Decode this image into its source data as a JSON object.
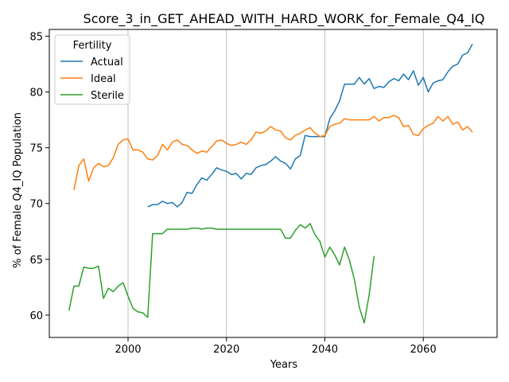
{
  "chart_data": {
    "type": "line",
    "title": "Score_3_in_GET_AHEAD_WITH_HARD_WORK_for_Female_Q4_IQ",
    "xlabel": "Years",
    "ylabel": "% of Female Q4_IQ Population",
    "xlim": [
      1984,
      2075
    ],
    "ylim": [
      58,
      85.6
    ],
    "xticks": [
      2000,
      2020,
      2040,
      2060
    ],
    "yticks": [
      60,
      65,
      70,
      75,
      80,
      85
    ],
    "grid": "x-only",
    "legend": {
      "title": "Fertility",
      "placement": "top-left"
    },
    "series": [
      {
        "name": "Actual",
        "color": "#1f77b4",
        "x": [
          2004,
          2005,
          2006,
          2007,
          2008,
          2009,
          2010,
          2011,
          2012,
          2013,
          2014,
          2015,
          2016,
          2017,
          2018,
          2019,
          2020,
          2021,
          2022,
          2023,
          2024,
          2025,
          2026,
          2027,
          2028,
          2029,
          2030,
          2031,
          2032,
          2033,
          2034,
          2035,
          2036,
          2037,
          2038,
          2039,
          2040,
          2041,
          2042,
          2043,
          2044,
          2045,
          2046,
          2047,
          2048,
          2049,
          2050,
          2051,
          2052,
          2053,
          2054,
          2055,
          2056,
          2057,
          2058,
          2059,
          2060,
          2061,
          2062,
          2063,
          2064,
          2065,
          2066,
          2067,
          2068,
          2069,
          2070
        ],
        "y": [
          69.7,
          69.9,
          69.9,
          70.2,
          70.0,
          70.1,
          69.7,
          70.1,
          71.0,
          70.9,
          71.7,
          72.3,
          72.1,
          72.6,
          73.2,
          73.0,
          72.9,
          72.6,
          72.7,
          72.2,
          72.7,
          72.6,
          73.2,
          73.4,
          73.5,
          73.8,
          74.2,
          73.8,
          73.6,
          73.1,
          74.0,
          74.3,
          76.1,
          76.0,
          76.0,
          76.0,
          76.0,
          77.6,
          78.3,
          79.2,
          80.7,
          80.7,
          80.7,
          81.3,
          80.7,
          81.2,
          80.3,
          80.5,
          80.4,
          80.9,
          81.2,
          81.0,
          81.6,
          81.1,
          81.9,
          80.6,
          81.3,
          80.0,
          80.8,
          81.0,
          81.1,
          81.8,
          82.3,
          82.5,
          83.3,
          83.5,
          84.3
        ]
      },
      {
        "name": "Ideal",
        "color": "#ff7f0e",
        "x": [
          1989,
          1990,
          1991,
          1992,
          1993,
          1994,
          1995,
          1996,
          1997,
          1998,
          1999,
          2000,
          2001,
          2002,
          2003,
          2004,
          2005,
          2006,
          2007,
          2008,
          2009,
          2010,
          2011,
          2012,
          2013,
          2014,
          2015,
          2016,
          2017,
          2018,
          2019,
          2020,
          2021,
          2022,
          2023,
          2024,
          2025,
          2026,
          2027,
          2028,
          2029,
          2030,
          2031,
          2032,
          2033,
          2034,
          2035,
          2036,
          2037,
          2038,
          2039,
          2040,
          2041,
          2042,
          2043,
          2044,
          2045,
          2046,
          2047,
          2048,
          2049,
          2050,
          2051,
          2052,
          2053,
          2054,
          2055,
          2056,
          2057,
          2058,
          2059,
          2060,
          2061,
          2062,
          2063,
          2064,
          2065,
          2066,
          2067,
          2068,
          2069,
          2070
        ],
        "y": [
          71.2,
          73.4,
          74.0,
          72.0,
          73.2,
          73.6,
          73.3,
          73.4,
          74.1,
          75.3,
          75.7,
          75.8,
          74.8,
          74.8,
          74.6,
          74.0,
          73.9,
          74.3,
          75.3,
          74.8,
          75.5,
          75.7,
          75.3,
          75.2,
          74.8,
          74.5,
          74.7,
          74.6,
          75.1,
          75.6,
          75.7,
          75.4,
          75.2,
          75.3,
          75.5,
          75.3,
          75.7,
          76.4,
          76.3,
          76.5,
          76.9,
          76.6,
          76.5,
          75.9,
          75.7,
          76.1,
          76.3,
          76.6,
          76.8,
          76.3,
          76.0,
          76.1,
          76.9,
          77.1,
          77.2,
          77.6,
          77.5,
          77.5,
          77.5,
          77.5,
          77.5,
          77.8,
          77.4,
          77.7,
          77.7,
          77.9,
          77.7,
          76.9,
          77.0,
          76.2,
          76.1,
          76.7,
          77.0,
          77.2,
          77.8,
          77.4,
          77.8,
          77.1,
          77.3,
          76.6,
          76.9,
          76.4
        ]
      },
      {
        "name": "Sterile",
        "color": "#2ca02c",
        "x": [
          1988,
          1989,
          1990,
          1991,
          1992,
          1993,
          1994,
          1995,
          1996,
          1997,
          1998,
          1999,
          2000,
          2001,
          2002,
          2003,
          2004,
          2005,
          2006,
          2007,
          2008,
          2009,
          2010,
          2011,
          2012,
          2013,
          2014,
          2015,
          2016,
          2017,
          2018,
          2019,
          2020,
          2021,
          2022,
          2023,
          2024,
          2025,
          2026,
          2027,
          2028,
          2029,
          2030,
          2031,
          2032,
          2033,
          2034,
          2035,
          2036,
          2037,
          2038,
          2039,
          2040,
          2041,
          2042,
          2043,
          2044,
          2045,
          2046,
          2047,
          2048,
          2049,
          2050
        ],
        "y": [
          60.4,
          62.6,
          62.6,
          64.3,
          64.2,
          64.2,
          64.4,
          61.5,
          62.4,
          62.1,
          62.6,
          62.9,
          61.7,
          60.6,
          60.3,
          60.2,
          59.8,
          67.3,
          67.3,
          67.3,
          67.7,
          67.7,
          67.7,
          67.7,
          67.7,
          67.8,
          67.8,
          67.7,
          67.8,
          67.8,
          67.7,
          67.7,
          67.7,
          67.7,
          67.7,
          67.7,
          67.7,
          67.7,
          67.7,
          67.7,
          67.7,
          67.7,
          67.7,
          67.7,
          66.9,
          66.9,
          67.6,
          68.1,
          67.8,
          68.2,
          67.2,
          66.6,
          65.2,
          66.1,
          65.4,
          64.5,
          66.1,
          64.9,
          63.2,
          60.7,
          59.3,
          61.8,
          65.3
        ]
      }
    ]
  }
}
